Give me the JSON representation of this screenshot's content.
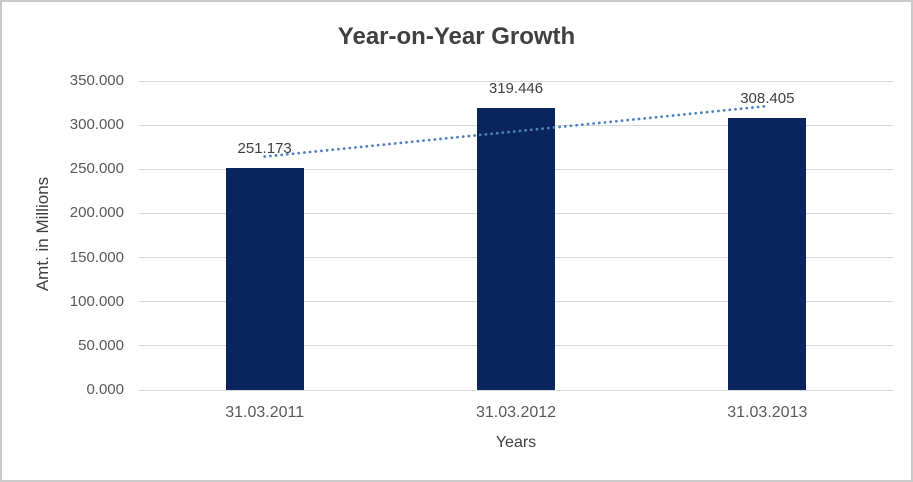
{
  "chart_data": {
    "type": "bar",
    "title": "Year-on-Year Growth",
    "xlabel": "Years",
    "ylabel": "Amt. in Millions",
    "categories": [
      "31.03.2011",
      "31.03.2012",
      "31.03.2013"
    ],
    "values": [
      251.173,
      319.446,
      308.405
    ],
    "data_labels": [
      "251.173",
      "319.446",
      "308.405"
    ],
    "ylim": [
      0,
      350
    ],
    "ytick_step": 50,
    "ytick_labels": [
      "0.000",
      "50.000",
      "100.000",
      "150.000",
      "200.000",
      "250.000",
      "300.000",
      "350.000"
    ],
    "grid": true,
    "legend": "none",
    "trendline": {
      "type": "linear",
      "style": "dotted"
    },
    "colors": {
      "bar": "#0a255e",
      "trendline": "#4e81bd",
      "gridline": "#d9d9d9",
      "tick_text": "#595959",
      "title_text": "#404040",
      "axis_title_text": "#404040",
      "data_label_text": "#404040",
      "border": "#c9c9c9",
      "background": "#ffffff"
    }
  }
}
